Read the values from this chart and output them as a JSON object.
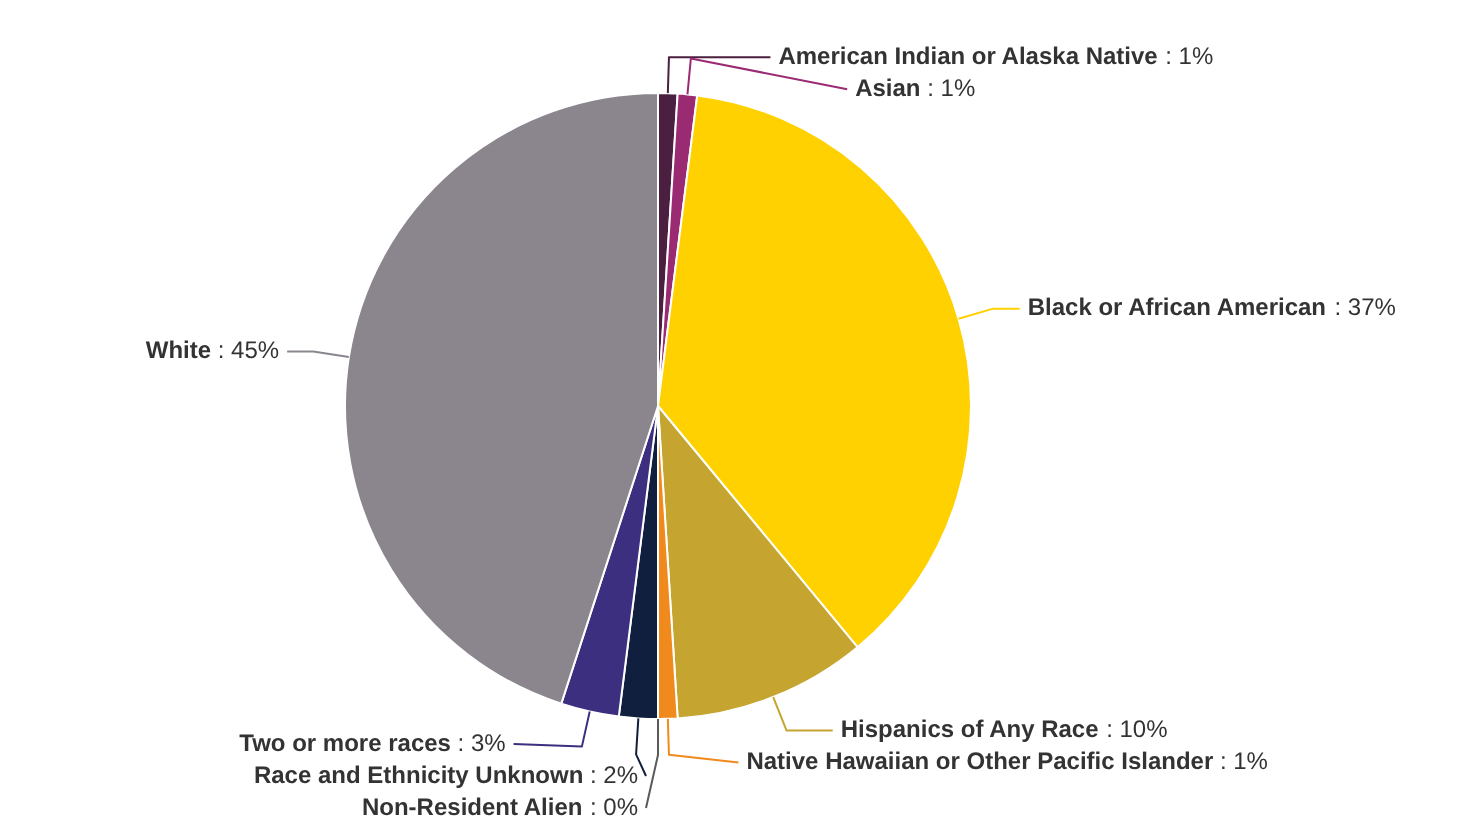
{
  "chart_data": {
    "type": "pie",
    "categories": [
      "American Indian or Alaska Native",
      "Asian",
      "Black or African American",
      "Hispanics of Any Race",
      "Native Hawaiian or Other Pacific Islander",
      "Non-Resident Alien",
      "Race and Ethnicity Unknown",
      "Two or more races",
      "White"
    ],
    "values": [
      1,
      1,
      37,
      10,
      1,
      0,
      2,
      3,
      45
    ],
    "colors": [
      "#4b1f3f",
      "#9a2a72",
      "#ffd100",
      "#c5a530",
      "#f08a1d",
      "#5a5a5a",
      "#0f1f3d",
      "#3d2f7f",
      "#8b868e"
    ],
    "value_labels": [
      ": 1%",
      ": 1%",
      ": 37%",
      ": 10%",
      ": 1%",
      ": 0%",
      ": 2%",
      ": 3%",
      ": 45%"
    ],
    "legend": false
  }
}
